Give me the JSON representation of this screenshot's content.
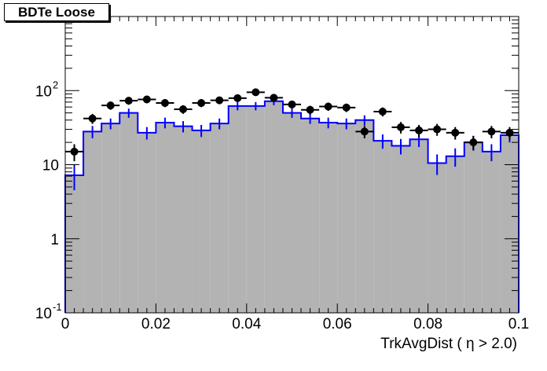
{
  "chart_data": {
    "type": "histogram",
    "title": "BDTe Loose",
    "xlabel": "TrkAvgDist ( η > 2.0)",
    "ylabel": "",
    "x_range": [
      0,
      0.1
    ],
    "y_range": [
      0.1,
      1000
    ],
    "y_scale": "log",
    "grid": false,
    "x_ticks": [
      "0",
      "0.02",
      "0.04",
      "0.06",
      "0.08",
      "0.1"
    ],
    "y_ticks": [
      {
        "base": "10",
        "exp": "-1"
      },
      {
        "base": "1",
        "exp": ""
      },
      {
        "base": "10",
        "exp": ""
      },
      {
        "base": "10",
        "exp": "2"
      }
    ],
    "bin_edges": [
      0,
      0.004,
      0.008,
      0.012,
      0.016,
      0.02,
      0.024,
      0.028,
      0.032,
      0.036,
      0.04,
      0.044,
      0.048,
      0.052,
      0.056,
      0.06,
      0.064,
      0.068,
      0.072,
      0.076,
      0.08,
      0.084,
      0.088,
      0.092,
      0.096,
      0.1
    ],
    "series": [
      {
        "style": "filled-histogram",
        "color": "#b3b3b3",
        "values": [
          7.2,
          28,
          36,
          50,
          27,
          37,
          33,
          29,
          36,
          62,
          62,
          72,
          50,
          42,
          37,
          36,
          40,
          21,
          18,
          22,
          10.5,
          13,
          20,
          15,
          25
        ]
      },
      {
        "style": "step-histogram-with-errors",
        "color": "#0000ff",
        "values": [
          7.2,
          28,
          36,
          50,
          27,
          37,
          33,
          29,
          36,
          62,
          62,
          72,
          50,
          42,
          37,
          36,
          40,
          21,
          18,
          22,
          10.5,
          13,
          20,
          15,
          25
        ]
      },
      {
        "style": "points-with-errors",
        "color": "#000000",
        "values": [
          15,
          42,
          63,
          73,
          76,
          68,
          56,
          68,
          74,
          79,
          95,
          80,
          65,
          55,
          61,
          59,
          28,
          52,
          32,
          29,
          30,
          27,
          20,
          28,
          27
        ]
      }
    ]
  }
}
